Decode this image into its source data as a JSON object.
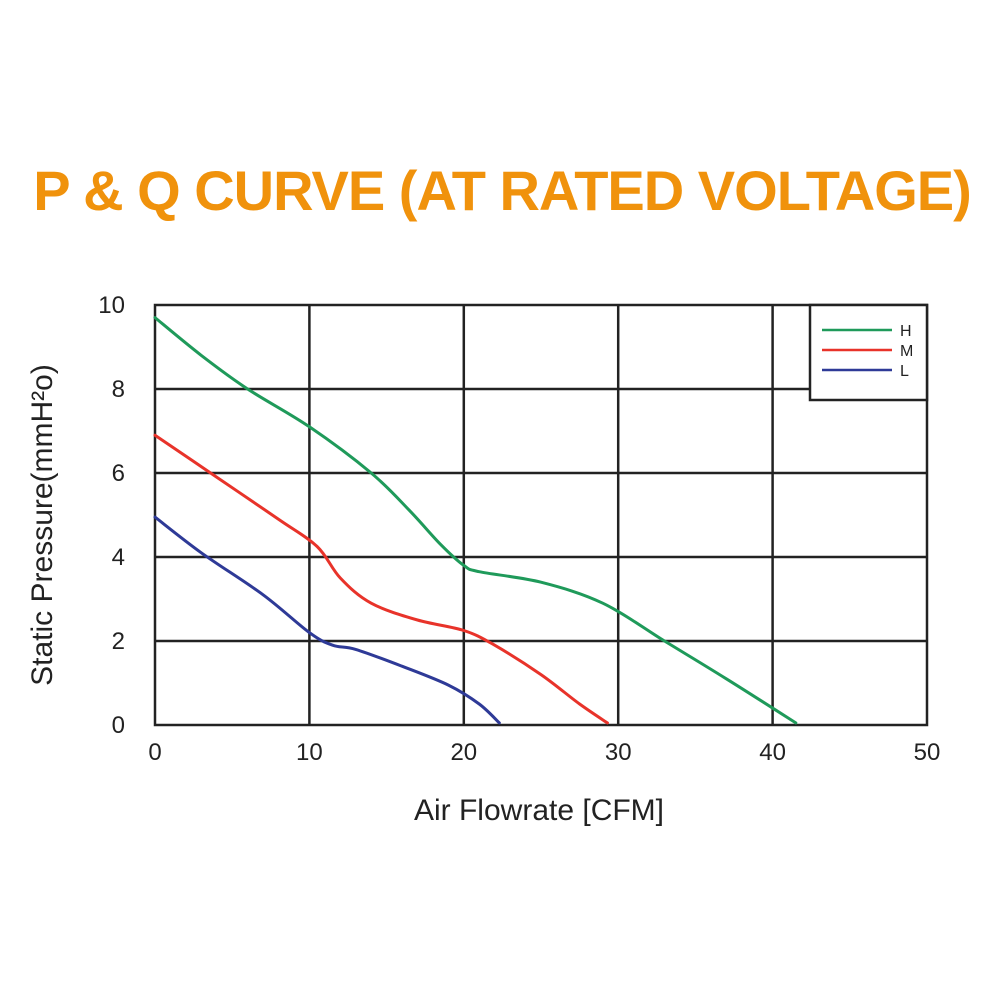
{
  "title": "P & Q CURVE (AT RATED VOLTAGE)",
  "title_color": "#f0920c",
  "chart_data": {
    "type": "line",
    "title": "P & Q CURVE (AT RATED VOLTAGE)",
    "xlabel": "Air Flowrate [CFM]",
    "ylabel": "Static Pressure(mmH²o)",
    "xlim": [
      0,
      50
    ],
    "ylim": [
      0,
      10
    ],
    "x_ticks": [
      "0",
      "10",
      "20",
      "30",
      "40",
      "50"
    ],
    "y_ticks": [
      "0",
      "2",
      "4",
      "6",
      "8",
      "10"
    ],
    "grid": true,
    "legend_position": "top-right",
    "series": [
      {
        "name": "H",
        "color": "#1f9a5a",
        "x": [
          0,
          3,
          6,
          10,
          14,
          16.5,
          18.5,
          20,
          21,
          25,
          29,
          33,
          37,
          41.5
        ],
        "y": [
          9.7,
          8.8,
          8.0,
          7.1,
          6.0,
          5.1,
          4.3,
          3.8,
          3.65,
          3.4,
          2.9,
          2.0,
          1.1,
          0.05
        ]
      },
      {
        "name": "M",
        "color": "#e8332a",
        "x": [
          0,
          4,
          8,
          10.5,
          12,
          14,
          17,
          20,
          22,
          25,
          27.5,
          29.3
        ],
        "y": [
          6.9,
          5.9,
          4.9,
          4.25,
          3.5,
          2.9,
          2.5,
          2.25,
          1.9,
          1.2,
          0.5,
          0.05
        ]
      },
      {
        "name": "L",
        "color": "#2e3a97",
        "x": [
          0,
          3,
          7,
          10,
          11.5,
          13,
          16,
          19,
          21,
          22.3
        ],
        "y": [
          4.95,
          4.1,
          3.1,
          2.2,
          1.9,
          1.8,
          1.4,
          0.95,
          0.5,
          0.05
        ]
      }
    ]
  }
}
